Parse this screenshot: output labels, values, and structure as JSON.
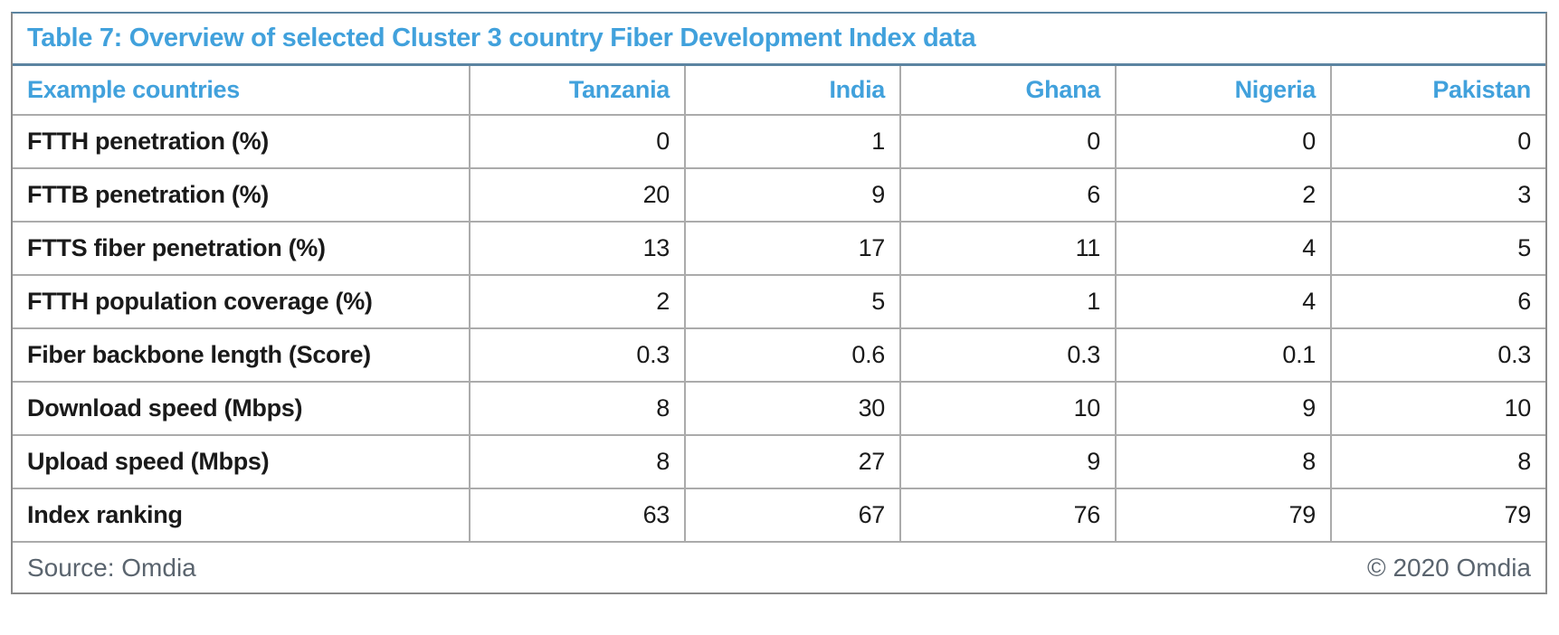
{
  "title": "Table 7: Overview of selected Cluster 3 country Fiber Development Index data",
  "colors": {
    "accent_blue": "#41a1dc",
    "text_dark": "#1a1a1a",
    "muted_gray": "#5a646e",
    "border_blue": "#5b84a1",
    "border_gray": "#8a8a8a",
    "grid_line": "#ababab"
  },
  "table": {
    "header": [
      "Example countries",
      "Tanzania",
      "India",
      "Ghana",
      "Nigeria",
      "Pakistan"
    ],
    "rows": [
      {
        "label": "FTTH penetration (%)",
        "values": [
          "0",
          "1",
          "0",
          "0",
          "0"
        ]
      },
      {
        "label": "FTTB penetration (%)",
        "values": [
          "20",
          "9",
          "6",
          "2",
          "3"
        ]
      },
      {
        "label": "FTTS fiber penetration (%)",
        "values": [
          "13",
          "17",
          "11",
          "4",
          "5"
        ]
      },
      {
        "label": "FTTH population coverage (%)",
        "values": [
          "2",
          "5",
          "1",
          "4",
          "6"
        ]
      },
      {
        "label": "Fiber backbone length (Score)",
        "values": [
          "0.3",
          "0.6",
          "0.3",
          "0.1",
          "0.3"
        ]
      },
      {
        "label": "Download speed (Mbps)",
        "values": [
          "8",
          "30",
          "10",
          "9",
          "10"
        ]
      },
      {
        "label": "Upload speed (Mbps)",
        "values": [
          "8",
          "27",
          "9",
          "8",
          "8"
        ]
      },
      {
        "label": "Index ranking",
        "values": [
          "63",
          "67",
          "76",
          "79",
          "79"
        ]
      }
    ]
  },
  "footer": {
    "source": "Source: Omdia",
    "copyright": "© 2020 Omdia"
  },
  "chart_data": {
    "type": "table",
    "title": "Table 7: Overview of selected Cluster 3 country Fiber Development Index data",
    "columns": [
      "Example countries",
      "Tanzania",
      "India",
      "Ghana",
      "Nigeria",
      "Pakistan"
    ],
    "rows": [
      [
        "FTTH penetration (%)",
        0,
        1,
        0,
        0,
        0
      ],
      [
        "FTTB penetration (%)",
        20,
        9,
        6,
        2,
        3
      ],
      [
        "FTTS fiber penetration (%)",
        13,
        17,
        11,
        4,
        5
      ],
      [
        "FTTH population coverage (%)",
        2,
        5,
        1,
        4,
        6
      ],
      [
        "Fiber backbone length (Score)",
        0.3,
        0.6,
        0.3,
        0.1,
        0.3
      ],
      [
        "Download speed (Mbps)",
        8,
        30,
        10,
        9,
        10
      ],
      [
        "Upload speed (Mbps)",
        8,
        27,
        9,
        8,
        8
      ],
      [
        "Index ranking",
        63,
        67,
        76,
        79,
        79
      ]
    ],
    "source": "Omdia",
    "copyright": "© 2020 Omdia"
  }
}
